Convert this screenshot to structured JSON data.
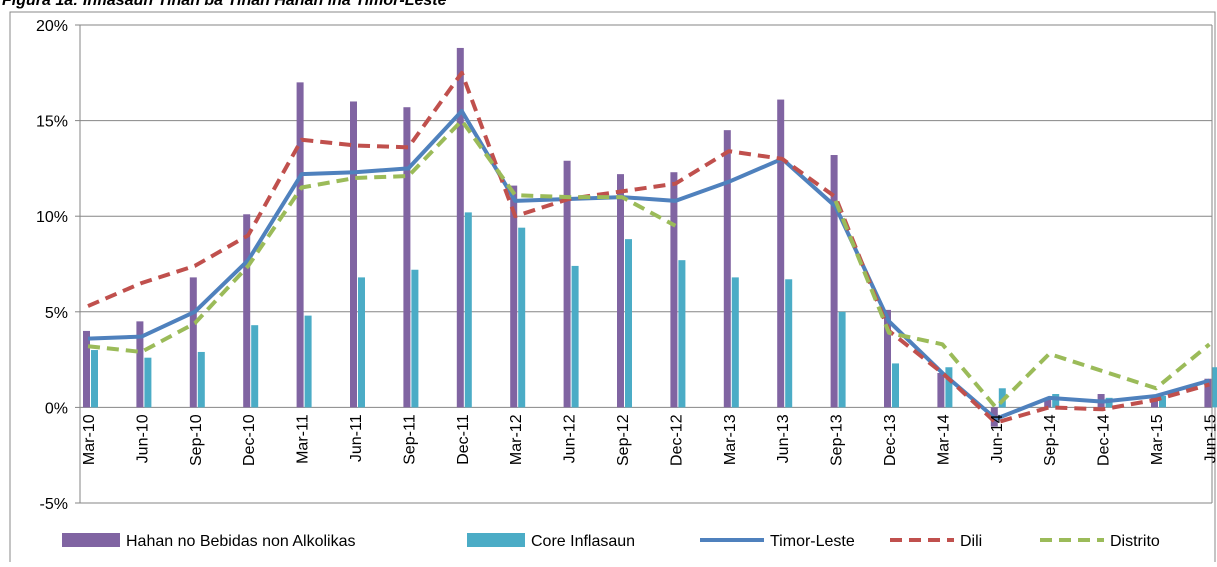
{
  "chart_data": {
    "type": "bar-line",
    "title": "Figura 1a: Inflasaun Tinan ba Tinan Hahan iha Timor-Leste",
    "categories": [
      "Mar-10",
      "Jun-10",
      "Sep-10",
      "Dec-10",
      "Mar-11",
      "Jun-11",
      "Sep-11",
      "Dec-11",
      "Mar-12",
      "Jun-12",
      "Sep-12",
      "Dec-12",
      "Mar-13",
      "Jun-13",
      "Sep-13",
      "Dec-13",
      "Mar-14",
      "Jun-14",
      "Sep-14",
      "Dec-14",
      "Mar-15",
      "Jun-15"
    ],
    "series": [
      {
        "name": "Hahan no Bebidas non Alkolikas",
        "type": "bar",
        "color": "#8064a2",
        "values": [
          4.0,
          4.5,
          6.8,
          10.1,
          17.0,
          16.0,
          15.7,
          18.8,
          11.6,
          12.9,
          12.2,
          12.3,
          14.5,
          16.1,
          13.2,
          5.1,
          1.8,
          -1.0,
          0.5,
          0.7,
          0.6,
          1.5
        ]
      },
      {
        "name": "Core Inflasaun",
        "type": "bar",
        "color": "#4bacc6",
        "values": [
          3.0,
          2.6,
          2.9,
          4.3,
          4.8,
          6.8,
          7.2,
          10.2,
          9.4,
          7.4,
          8.8,
          7.7,
          6.8,
          6.7,
          5.0,
          2.3,
          2.1,
          1.0,
          0.7,
          0.5,
          0.6,
          2.1
        ]
      },
      {
        "name": "Timor-Leste",
        "type": "line",
        "color": "#4f81bd",
        "dashed": false,
        "values": [
          3.6,
          3.7,
          5.0,
          7.7,
          12.2,
          12.3,
          12.5,
          15.5,
          10.8,
          10.9,
          11.0,
          10.8,
          11.8,
          13.0,
          10.5,
          4.5,
          1.8,
          -0.6,
          0.5,
          0.3,
          0.6,
          1.4
        ]
      },
      {
        "name": "Dili",
        "type": "line",
        "color": "#c0504d",
        "dashed": true,
        "values": [
          5.3,
          6.5,
          7.4,
          9.0,
          14.0,
          13.7,
          13.6,
          17.5,
          10.0,
          10.9,
          11.3,
          11.7,
          13.4,
          13.0,
          11.0,
          4.0,
          1.8,
          -0.8,
          0.0,
          -0.1,
          0.4,
          1.2
        ]
      },
      {
        "name": "Distrito",
        "type": "line",
        "color": "#9bbb59",
        "dashed": true,
        "values": [
          3.2,
          2.9,
          4.4,
          7.4,
          11.5,
          12.0,
          12.1,
          15.0,
          11.1,
          11.0,
          11.0,
          9.5,
          null,
          null,
          10.8,
          3.9,
          3.3,
          0.0,
          2.8,
          1.9,
          1.0,
          3.3
        ]
      }
    ],
    "ylim": [
      -5,
      20
    ],
    "yticks": [
      {
        "value": -5,
        "label": "-5%"
      },
      {
        "value": 0,
        "label": "0%"
      },
      {
        "value": 5,
        "label": "5%"
      },
      {
        "value": 10,
        "label": "10%"
      },
      {
        "value": 15,
        "label": "15%"
      },
      {
        "value": 20,
        "label": "20%"
      }
    ],
    "grid": true,
    "legend": "bottom"
  }
}
